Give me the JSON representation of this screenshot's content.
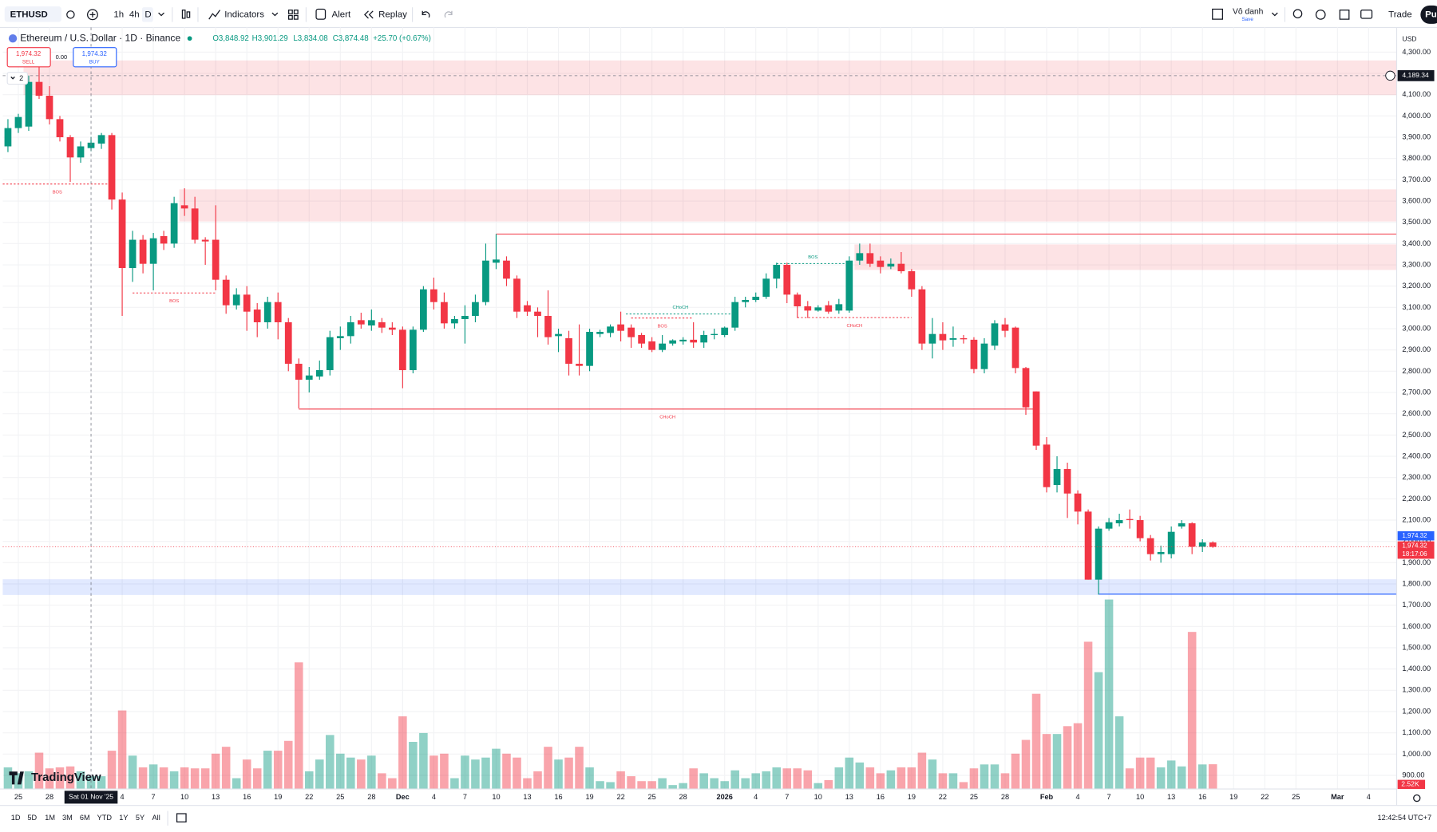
{
  "toolbar": {
    "symbol": "ETHUSD",
    "intervals": [
      "1h",
      "4h",
      "D"
    ],
    "indicators": "Indicators",
    "alert": "Alert",
    "replay": "Replay",
    "layout_name": "Vô danh",
    "save": "Save",
    "trade": "Trade",
    "publish": "Pu"
  },
  "legend": {
    "title": "Ethereum / U.S. Dollar · 1D · Binance",
    "open": "O3,848.92",
    "high": "H3,901.29",
    "low": "L3,834.08",
    "close": "C3,874.48",
    "change": "+25.70 (+0.67%)",
    "indicator_count": "2"
  },
  "trade": {
    "sell_price": "1,974.32",
    "sell": "SELL",
    "spread": "0.00",
    "buy_price": "1,974.32",
    "buy": "BUY"
  },
  "currency": "USD",
  "logo": "TradingView",
  "ranges": [
    "1D",
    "5D",
    "1M",
    "3M",
    "6M",
    "YTD",
    "1Y",
    "5Y",
    "All"
  ],
  "clock": "12:42:54 UTC+7",
  "chart_data": {
    "type": "candlestick",
    "up_color": "#089981",
    "down_color": "#f23645",
    "grid": true,
    "xlim": [
      -0.5,
      133.7
    ],
    "ylim": [
      836,
      4416
    ],
    "candles": [
      [
        3857,
        3985,
        3830,
        3943
      ],
      [
        3943,
        4010,
        3920,
        3995
      ],
      [
        3950,
        4190,
        3930,
        4160
      ],
      [
        4160,
        4250,
        4080,
        4095
      ],
      [
        4095,
        4140,
        3960,
        3985
      ],
      [
        3985,
        4000,
        3880,
        3900
      ],
      [
        3900,
        3910,
        3690,
        3805
      ],
      [
        3805,
        3880,
        3780,
        3857
      ],
      [
        3848.92,
        3901.29,
        3834.08,
        3874.48
      ],
      [
        3870,
        3920,
        3845,
        3910
      ],
      [
        3910,
        3920,
        3560,
        3607
      ],
      [
        3607,
        3640,
        3060,
        3285
      ],
      [
        3285,
        3460,
        3220,
        3418
      ],
      [
        3418,
        3440,
        3260,
        3305
      ],
      [
        3305,
        3450,
        3180,
        3425
      ],
      [
        3435,
        3460,
        3370,
        3400
      ],
      [
        3400,
        3620,
        3380,
        3590
      ],
      [
        3580,
        3660,
        3530,
        3565
      ],
      [
        3565,
        3620,
        3400,
        3418
      ],
      [
        3418,
        3430,
        3300,
        3410
      ],
      [
        3418,
        3580,
        3180,
        3230
      ],
      [
        3230,
        3250,
        3070,
        3110
      ],
      [
        3110,
        3190,
        3090,
        3160
      ],
      [
        3160,
        3200,
        2990,
        3080
      ],
      [
        3090,
        3120,
        2960,
        3030
      ],
      [
        3030,
        3150,
        3000,
        3125
      ],
      [
        3125,
        3170,
        2950,
        3030
      ],
      [
        3030,
        3050,
        2800,
        2835
      ],
      [
        2835,
        2860,
        2625,
        2760
      ],
      [
        2760,
        2820,
        2700,
        2780
      ],
      [
        2775,
        2850,
        2760,
        2805
      ],
      [
        2805,
        2990,
        2780,
        2960
      ],
      [
        2955,
        3010,
        2900,
        2965
      ],
      [
        2965,
        3060,
        2930,
        3030
      ],
      [
        3040,
        3075,
        3000,
        3020
      ],
      [
        3015,
        3090,
        2990,
        3040
      ],
      [
        3030,
        3050,
        2980,
        3005
      ],
      [
        3005,
        3030,
        2970,
        2995
      ],
      [
        2995,
        3010,
        2720,
        2805
      ],
      [
        2805,
        3010,
        2790,
        2995
      ],
      [
        2995,
        3200,
        2985,
        3185
      ],
      [
        3185,
        3240,
        3090,
        3125
      ],
      [
        3125,
        3170,
        3000,
        3025
      ],
      [
        3025,
        3060,
        3000,
        3045
      ],
      [
        3045,
        3110,
        2930,
        3060
      ],
      [
        3060,
        3160,
        3030,
        3125
      ],
      [
        3125,
        3400,
        3110,
        3320
      ],
      [
        3310,
        3445,
        3280,
        3325
      ],
      [
        3320,
        3340,
        3200,
        3235
      ],
      [
        3235,
        3250,
        3050,
        3080
      ],
      [
        3110,
        3130,
        3060,
        3080
      ],
      [
        3080,
        3100,
        2960,
        3060
      ],
      [
        3060,
        3180,
        2925,
        2960
      ],
      [
        2965,
        3000,
        2890,
        2975
      ],
      [
        2955,
        2990,
        2780,
        2835
      ],
      [
        2835,
        3020,
        2780,
        2825
      ],
      [
        2825,
        3000,
        2800,
        2985
      ],
      [
        2975,
        2995,
        2960,
        2985
      ],
      [
        2980,
        3020,
        2960,
        3010
      ],
      [
        3020,
        3080,
        2940,
        2990
      ],
      [
        3005,
        3020,
        2910,
        2960
      ],
      [
        2970,
        2980,
        2910,
        2930
      ],
      [
        2940,
        2960,
        2890,
        2900
      ],
      [
        2900,
        2970,
        2890,
        2930
      ],
      [
        2930,
        2950,
        2920,
        2945
      ],
      [
        2940,
        2960,
        2925,
        2948
      ],
      [
        2948,
        3030,
        2910,
        2935
      ],
      [
        2935,
        2990,
        2910,
        2970
      ],
      [
        2970,
        3000,
        2950,
        2975
      ],
      [
        2970,
        3010,
        2960,
        3005
      ],
      [
        3005,
        3150,
        2990,
        3125
      ],
      [
        3125,
        3150,
        3100,
        3135
      ],
      [
        3135,
        3170,
        3125,
        3150
      ],
      [
        3150,
        3260,
        3140,
        3235
      ],
      [
        3235,
        3310,
        3190,
        3300
      ],
      [
        3300,
        3310,
        3120,
        3160
      ],
      [
        3160,
        3170,
        3050,
        3105
      ],
      [
        3105,
        3130,
        3050,
        3085
      ],
      [
        3085,
        3110,
        3080,
        3100
      ],
      [
        3110,
        3130,
        3070,
        3080
      ],
      [
        3085,
        3140,
        3070,
        3115
      ],
      [
        3085,
        3340,
        3075,
        3320
      ],
      [
        3320,
        3400,
        3300,
        3355
      ],
      [
        3355,
        3400,
        3290,
        3305
      ],
      [
        3320,
        3340,
        3260,
        3290
      ],
      [
        3292,
        3330,
        3280,
        3305
      ],
      [
        3305,
        3360,
        3260,
        3270
      ],
      [
        3270,
        3280,
        3150,
        3185
      ],
      [
        3185,
        3200,
        2900,
        2930
      ],
      [
        2930,
        3050,
        2860,
        2975
      ],
      [
        2975,
        3030,
        2900,
        2945
      ],
      [
        2948,
        3010,
        2915,
        2955
      ],
      [
        2955,
        2970,
        2930,
        2950
      ],
      [
        2948,
        2960,
        2790,
        2810
      ],
      [
        2810,
        2955,
        2790,
        2930
      ],
      [
        2920,
        3040,
        2900,
        3025
      ],
      [
        3020,
        3050,
        2960,
        2990
      ],
      [
        3005,
        3010,
        2790,
        2815
      ],
      [
        2815,
        2820,
        2595,
        2630
      ],
      [
        2705,
        2705,
        2430,
        2450
      ],
      [
        2455,
        2490,
        2230,
        2255
      ],
      [
        2265,
        2400,
        2230,
        2340
      ],
      [
        2340,
        2370,
        2110,
        2225
      ],
      [
        2225,
        2240,
        2080,
        2140
      ],
      [
        2140,
        2150,
        1820,
        1820
      ],
      [
        1820,
        2070,
        1750,
        2060
      ],
      [
        2060,
        2110,
        2050,
        2090
      ],
      [
        2085,
        2130,
        2070,
        2100
      ],
      [
        2105,
        2150,
        2060,
        2100
      ],
      [
        2100,
        2120,
        2000,
        2015
      ],
      [
        2015,
        2030,
        1910,
        1940
      ],
      [
        1940,
        1980,
        1900,
        1950
      ],
      [
        1940,
        2070,
        1920,
        2045
      ],
      [
        2070,
        2100,
        2060,
        2085
      ],
      [
        2085,
        2090,
        1940,
        1975
      ],
      [
        1975,
        2010,
        1950,
        1995
      ],
      [
        1995,
        2000,
        1970,
        1974.32
      ]
    ],
    "volume": [
      2.2,
      1.6,
      1.8,
      3.7,
      2.1,
      2.2,
      2.3,
      1.8,
      1.3,
      1.3,
      3.9,
      8.0,
      3.4,
      2.2,
      2.5,
      2.2,
      1.8,
      2.2,
      2.1,
      2.1,
      3.6,
      4.3,
      1.1,
      3.0,
      2.1,
      3.9,
      3.9,
      4.9,
      12.9,
      1.8,
      3.0,
      5.5,
      3.6,
      3.2,
      3.0,
      3.4,
      1.6,
      1.1,
      7.4,
      4.8,
      5.7,
      3.4,
      3.6,
      1.1,
      3.4,
      3.0,
      3.2,
      4.1,
      3.6,
      3.2,
      1.1,
      1.8,
      4.3,
      3.0,
      3.2,
      4.3,
      2.2,
      0.8,
      0.7,
      1.8,
      1.3,
      0.8,
      0.8,
      1.1,
      0.4,
      0.6,
      2.1,
      1.6,
      1.1,
      0.8,
      1.9,
      1.1,
      1.6,
      1.8,
      2.2,
      2.1,
      2.1,
      1.9,
      0.6,
      0.9,
      2.2,
      3.2,
      2.7,
      2.2,
      1.6,
      1.9,
      2.2,
      2.2,
      3.7,
      3.0,
      1.6,
      1.6,
      0.7,
      2.1,
      2.5,
      2.5,
      1.6,
      3.6,
      5.0,
      9.7,
      5.6,
      5.6,
      6.4,
      6.7,
      15.0,
      11.9,
      19.3,
      7.4,
      2.1,
      3.2,
      3.2,
      2.2,
      2.9,
      2.3,
      16.0,
      2.5,
      2.52
    ],
    "volume_label": "2.52K",
    "yticks": [
      {
        "value": 4300,
        "label": "4,300.00"
      },
      {
        "value": 4200,
        "label": "4,200.00"
      },
      {
        "value": 4100,
        "label": "4,100.00"
      },
      {
        "value": 4000,
        "label": "4,000.00"
      },
      {
        "value": 3900,
        "label": "3,900.00"
      },
      {
        "value": 3800,
        "label": "3,800.00"
      },
      {
        "value": 3700,
        "label": "3,700.00"
      },
      {
        "value": 3600,
        "label": "3,600.00"
      },
      {
        "value": 3500,
        "label": "3,500.00"
      },
      {
        "value": 3400,
        "label": "3,400.00"
      },
      {
        "value": 3300,
        "label": "3,300.00"
      },
      {
        "value": 3200,
        "label": "3,200.00"
      },
      {
        "value": 3100,
        "label": "3,100.00"
      },
      {
        "value": 3000,
        "label": "3,000.00"
      },
      {
        "value": 2900,
        "label": "2,900.00"
      },
      {
        "value": 2800,
        "label": "2,800.00"
      },
      {
        "value": 2700,
        "label": "2,700.00"
      },
      {
        "value": 2600,
        "label": "2,600.00"
      },
      {
        "value": 2500,
        "label": "2,500.00"
      },
      {
        "value": 2400,
        "label": "2,400.00"
      },
      {
        "value": 2300,
        "label": "2,300.00"
      },
      {
        "value": 2200,
        "label": "2,200.00"
      },
      {
        "value": 2100,
        "label": "2,100.00"
      },
      {
        "value": 2000,
        "label": "2,000.00"
      },
      {
        "value": 1900,
        "label": "1,900.00"
      },
      {
        "value": 1800,
        "label": "1,800.00"
      },
      {
        "value": 1700,
        "label": "1,700.00"
      },
      {
        "value": 1600,
        "label": "1,600.00"
      },
      {
        "value": 1500,
        "label": "1,500.00"
      },
      {
        "value": 1400,
        "label": "1,400.00"
      },
      {
        "value": 1300,
        "label": "1,300.00"
      },
      {
        "value": 1200,
        "label": "1,200.00"
      },
      {
        "value": 1100,
        "label": "1,100.00"
      },
      {
        "value": 1000,
        "label": "1,000.00"
      },
      {
        "value": 900,
        "label": "900.00"
      }
    ],
    "xticks": [
      {
        "value": 1,
        "label": "25"
      },
      {
        "value": 4,
        "label": "28"
      },
      {
        "value": 11,
        "label": "4"
      },
      {
        "value": 14,
        "label": "7"
      },
      {
        "value": 17,
        "label": "10"
      },
      {
        "value": 20,
        "label": "13"
      },
      {
        "value": 23,
        "label": "16"
      },
      {
        "value": 26,
        "label": "19"
      },
      {
        "value": 29,
        "label": "22"
      },
      {
        "value": 32,
        "label": "25"
      },
      {
        "value": 35,
        "label": "28"
      },
      {
        "value": 38,
        "label": "Dec"
      },
      {
        "value": 41,
        "label": "4"
      },
      {
        "value": 44,
        "label": "7"
      },
      {
        "value": 47,
        "label": "10"
      },
      {
        "value": 50,
        "label": "13"
      },
      {
        "value": 53,
        "label": "16"
      },
      {
        "value": 56,
        "label": "19"
      },
      {
        "value": 59,
        "label": "22"
      },
      {
        "value": 62,
        "label": "25"
      },
      {
        "value": 65,
        "label": "28"
      },
      {
        "value": 69,
        "label": "2026"
      },
      {
        "value": 72,
        "label": "4"
      },
      {
        "value": 75,
        "label": "7"
      },
      {
        "value": 78,
        "label": "10"
      },
      {
        "value": 81,
        "label": "13"
      },
      {
        "value": 84,
        "label": "16"
      },
      {
        "value": 87,
        "label": "19"
      },
      {
        "value": 90,
        "label": "22"
      },
      {
        "value": 93,
        "label": "25"
      },
      {
        "value": 96,
        "label": "28"
      },
      {
        "value": 100,
        "label": "Feb"
      },
      {
        "value": 103,
        "label": "4"
      },
      {
        "value": 106,
        "label": "7"
      },
      {
        "value": 109,
        "label": "10"
      },
      {
        "value": 112,
        "label": "13"
      },
      {
        "value": 115,
        "label": "16"
      },
      {
        "value": 118,
        "label": "19"
      },
      {
        "value": 121,
        "label": "22"
      },
      {
        "value": 124,
        "label": "25"
      },
      {
        "value": 128,
        "label": "Mar"
      },
      {
        "value": 131,
        "label": "4"
      }
    ],
    "zones": [
      {
        "top": 4261,
        "bottom": 4098,
        "start": 1.5,
        "color": "#f23645"
      },
      {
        "top": 3655,
        "bottom": 3504,
        "start": 16.5,
        "color": "#f23645"
      },
      {
        "top": 3396,
        "bottom": 3276,
        "start": 81.5,
        "color": "#f23645"
      },
      {
        "top": 1822,
        "bottom": 1748,
        "start": -0.5,
        "color": "#2962ff"
      }
    ],
    "lines": [
      {
        "price": 3680,
        "start": -0.5,
        "end": 10,
        "dashed": true,
        "color": "#f23645",
        "label": "BOS"
      },
      {
        "price": 3168,
        "start": 12,
        "end": 20,
        "dashed": true,
        "color": "#f23645",
        "label": "BOS"
      },
      {
        "price": 3445,
        "start": 47,
        "dashed": false,
        "color": "#f23645"
      },
      {
        "price": 2622,
        "start": 28,
        "end": 99,
        "dashed": false,
        "color": "#f23645",
        "label": "CHoCH"
      },
      {
        "price": 3306,
        "start": 74,
        "end": 81,
        "dashed": true,
        "color": "#089981",
        "label": "BOS"
      },
      {
        "price": 3069,
        "start": 59.5,
        "end": 70,
        "dashed": true,
        "color": "#089981",
        "label": "CHoCH"
      },
      {
        "price": 3050,
        "start": 60,
        "end": 66,
        "dashed": true,
        "color": "#f23645",
        "label": "BOS"
      },
      {
        "price": 3052,
        "start": 76,
        "end": 87,
        "dashed": true,
        "color": "#f23645",
        "label": "CHoCH"
      },
      {
        "price": 1752,
        "start": 105,
        "dashed": false,
        "color": "#2962ff"
      }
    ],
    "crosshair": {
      "index": 8,
      "price": 4189.34,
      "price_label": "4,189.34",
      "date_label": "Sat 01 Nov '25"
    },
    "last_price": {
      "value": 1974.32,
      "labels": [
        "1,974.32",
        "1,974.32"
      ],
      "countdown": "18:17:06"
    }
  }
}
